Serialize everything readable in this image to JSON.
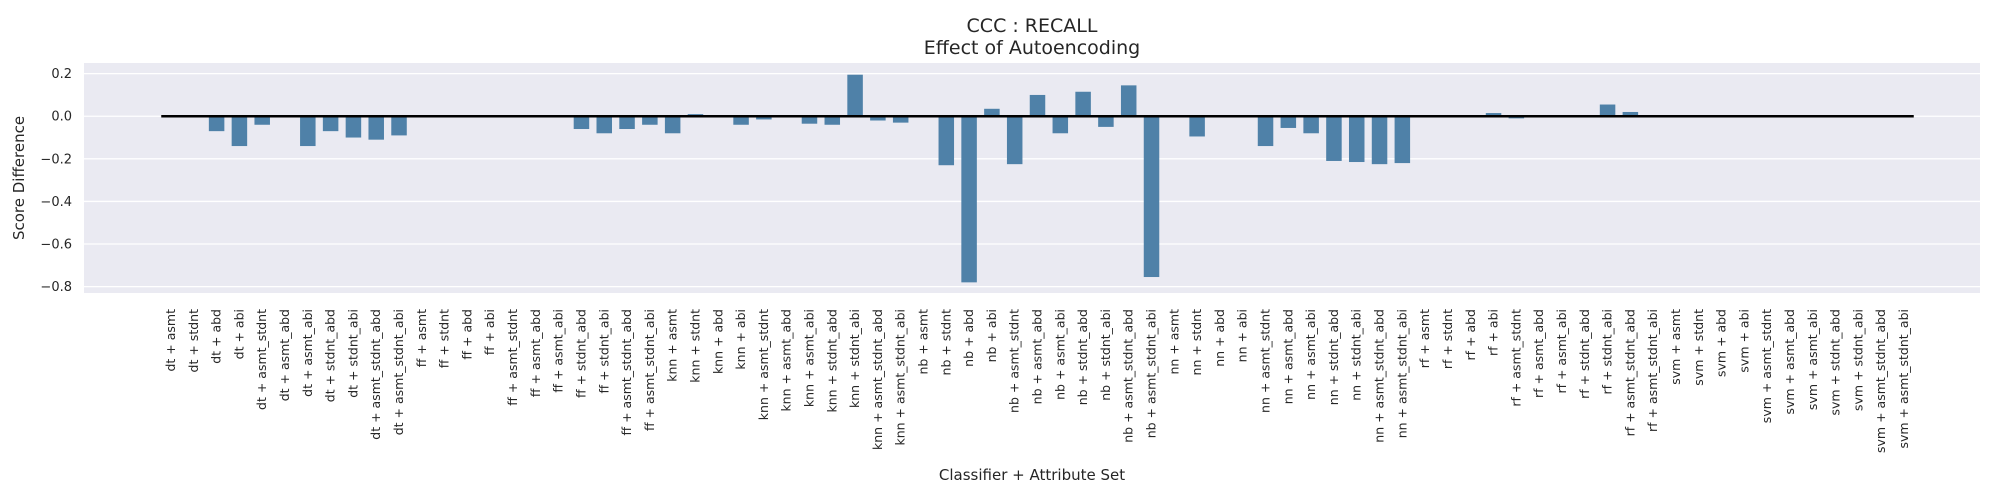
{
  "chart_data": {
    "type": "bar",
    "title": "CCC : RECALL",
    "subtitle": "Effect of Autoencoding",
    "xlabel": "Classifier + Attribute Set",
    "ylabel": "Score Difference",
    "ylim": [
      -0.83,
      0.25
    ],
    "yticks": [
      0.2,
      0.0,
      -0.2,
      -0.4,
      -0.6,
      -0.8
    ],
    "ytick_labels": [
      "0.2",
      "0.0",
      "−0.2",
      "−0.4",
      "−0.6",
      "−0.8"
    ],
    "grid": true,
    "reference_line": 0.0,
    "bar_color": "#4f81a8",
    "background_color": "#eaeaf2",
    "categories": [
      "dt + asmt",
      "dt + stdnt",
      "dt + abd",
      "dt + abi",
      "dt + asmt_stdnt",
      "dt + asmt_abd",
      "dt + asmt_abi",
      "dt + stdnt_abd",
      "dt + stdnt_abi",
      "dt + asmt_stdnt_abd",
      "dt + asmt_stdnt_abi",
      "ff + asmt",
      "ff + stdnt",
      "ff + abd",
      "ff + abi",
      "ff + asmt_stdnt",
      "ff + asmt_abd",
      "ff + asmt_abi",
      "ff + stdnt_abd",
      "ff + stdnt_abi",
      "ff + asmt_stdnt_abd",
      "ff + asmt_stdnt_abi",
      "knn + asmt",
      "knn + stdnt",
      "knn + abd",
      "knn + abi",
      "knn + asmt_stdnt",
      "knn + asmt_abd",
      "knn + asmt_abi",
      "knn + stdnt_abd",
      "knn + stdnt_abi",
      "knn + asmt_stdnt_abd",
      "knn + asmt_stdnt_abi",
      "nb + asmt",
      "nb + stdnt",
      "nb + abd",
      "nb + abi",
      "nb + asmt_stdnt",
      "nb + asmt_abd",
      "nb + asmt_abi",
      "nb + stdnt_abd",
      "nb + stdnt_abi",
      "nb + asmt_stdnt_abd",
      "nb + asmt_stdnt_abi",
      "nn + asmt",
      "nn + stdnt",
      "nn + abd",
      "nn + abi",
      "nn + asmt_stdnt",
      "nn + asmt_abd",
      "nn + asmt_abi",
      "nn + stdnt_abd",
      "nn + stdnt_abi",
      "nn + asmt_stdnt_abd",
      "nn + asmt_stdnt_abi",
      "rf + asmt",
      "rf + stdnt",
      "rf + abd",
      "rf + abi",
      "rf + asmt_stdnt",
      "rf + asmt_abd",
      "rf + asmt_abi",
      "rf + stdnt_abd",
      "rf + stdnt_abi",
      "rf + asmt_stdnt_abd",
      "rf + asmt_stdnt_abi",
      "svm + asmt",
      "svm + stdnt",
      "svm + abd",
      "svm + abi",
      "svm + asmt_stdnt",
      "svm + asmt_abd",
      "svm + asmt_abi",
      "svm + stdnt_abd",
      "svm + stdnt_abi",
      "svm + asmt_stdnt_abd",
      "svm + asmt_stdnt_abi"
    ],
    "values": [
      0.0,
      0.0,
      -0.07,
      -0.14,
      -0.04,
      0.0,
      -0.14,
      -0.07,
      -0.1,
      -0.11,
      -0.09,
      0.0,
      0.0,
      0.0,
      0.0,
      0.0,
      0.0,
      0.0,
      -0.06,
      -0.08,
      -0.06,
      -0.04,
      -0.08,
      0.01,
      0.005,
      -0.04,
      -0.015,
      0.0,
      -0.035,
      -0.04,
      0.195,
      -0.02,
      -0.03,
      0.0,
      -0.23,
      -0.78,
      0.035,
      -0.225,
      0.1,
      -0.08,
      0.115,
      -0.05,
      0.145,
      -0.755,
      0.0,
      -0.095,
      0.0,
      0.0,
      -0.14,
      -0.055,
      -0.08,
      -0.21,
      -0.215,
      -0.225,
      -0.22,
      0.0,
      0.0,
      0.0,
      0.015,
      -0.01,
      0.0,
      0.0,
      0.005,
      0.055,
      0.02,
      0.0,
      0.0,
      0.0,
      0.0,
      0.0,
      0.0,
      0.0,
      0.0,
      0.0,
      0.0,
      0.0,
      0.0
    ]
  }
}
